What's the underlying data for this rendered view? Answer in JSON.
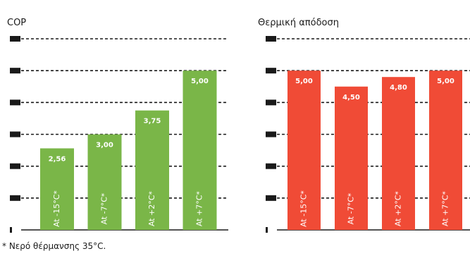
{
  "footnote": "* Νερό θέρμανσης 35°C.",
  "chart_data": [
    {
      "type": "bar",
      "title": "COP",
      "categories": [
        "At -15°C*",
        "At -7°C*",
        "At +2°C*",
        "At +7°C*"
      ],
      "values": [
        2.56,
        3.0,
        3.75,
        5.0
      ],
      "data_labels": [
        "2,56",
        "3,00",
        "3,75",
        "5,00"
      ],
      "ylim": [
        0,
        6
      ],
      "grid": true,
      "bar_color": "#7ab648"
    },
    {
      "type": "bar",
      "title": "Θερμική απόδοση",
      "categories": [
        "At -15°C*",
        "At -7°C*",
        "At +2°C*",
        "At +7°C*"
      ],
      "values": [
        5.0,
        4.5,
        4.8,
        5.0
      ],
      "data_labels": [
        "5,00",
        "4,50",
        "4,80",
        "5,00"
      ],
      "ylim": [
        0,
        6
      ],
      "grid": true,
      "bar_color": "#f04b36"
    }
  ]
}
